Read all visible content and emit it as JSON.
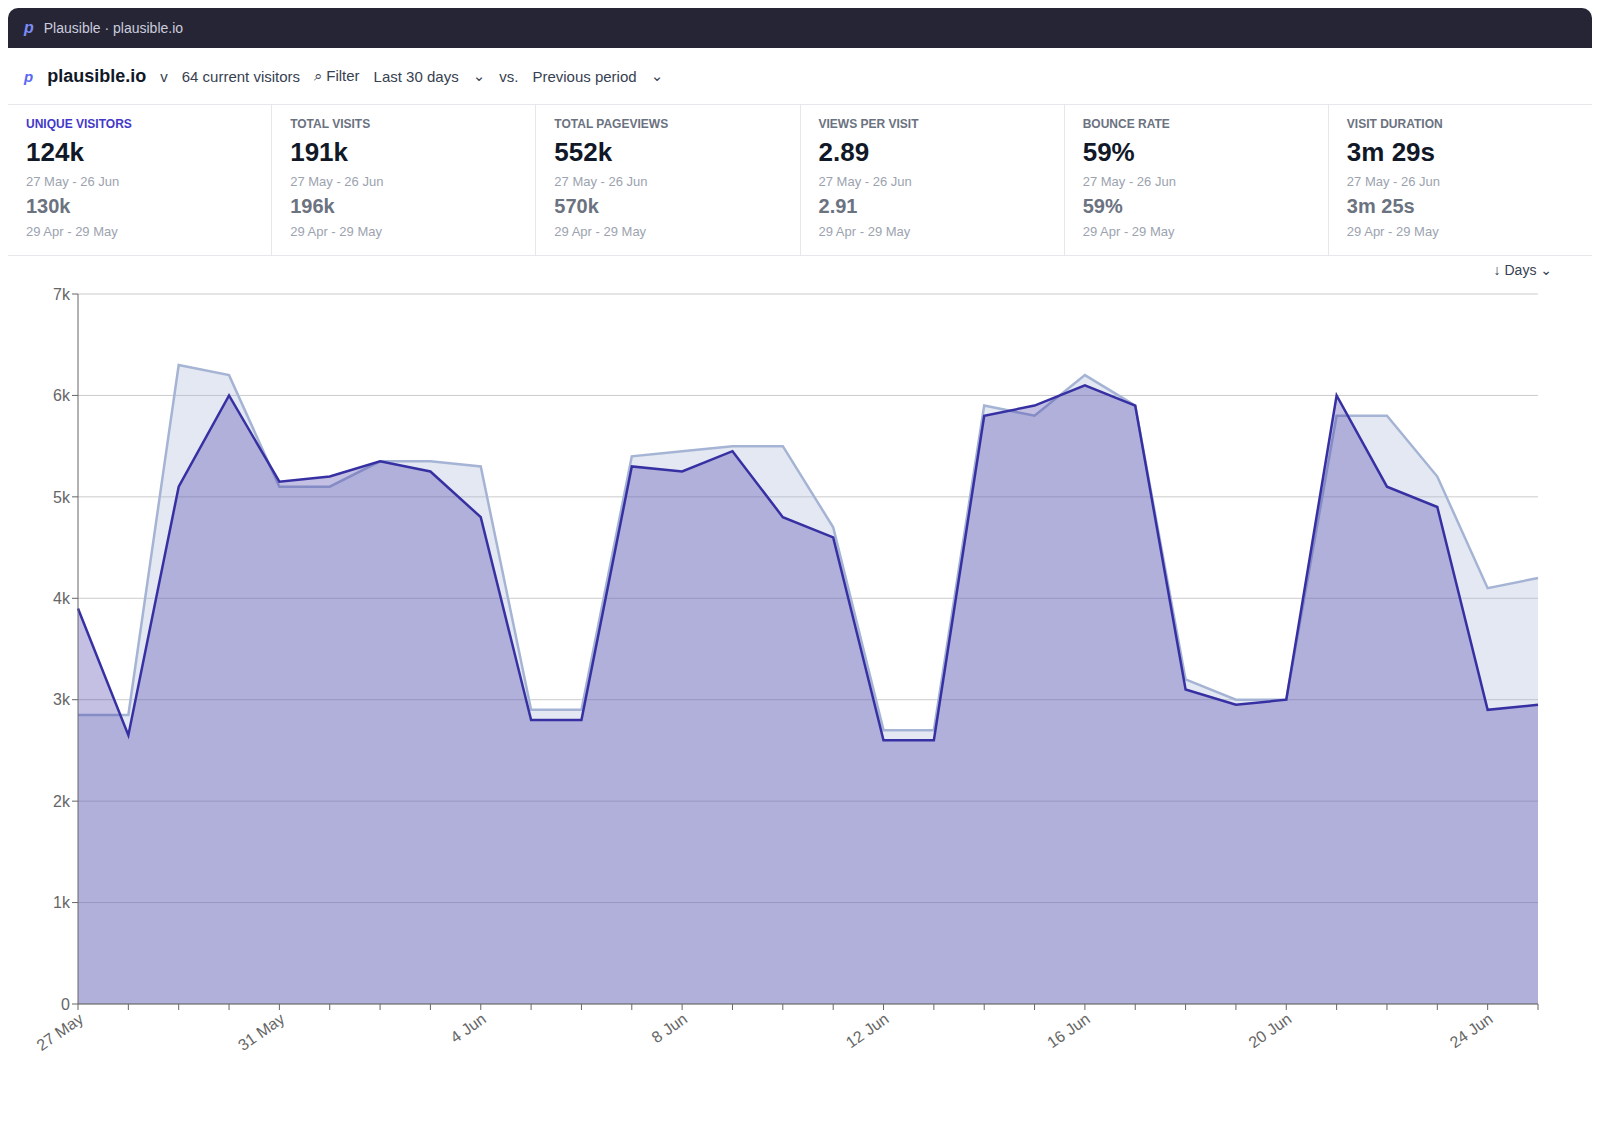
{
  "chart_data": {
    "type": "area",
    "annotations": [
      [
        "p",
        "Plausible · plausible.io"
      ],
      [
        "p",
        "plausible.io",
        "v",
        "64 current visitors",
        "⌕  Filter",
        "Last 30 days",
        "⌄",
        "vs.",
        "Previous period",
        "⌄"
      ],
      [
        "UNIQUE VISITORS",
        "124k",
        "27 May - 26 Jun",
        "130k",
        "29 Apr - 29 May"
      ],
      [
        "TOTAL VISITS",
        "191k",
        "27 May - 26 Jun",
        "196k",
        "29 Apr - 29 May"
      ],
      [
        "TOTAL PAGEVIEWS",
        "552k",
        "27 May - 26 Jun",
        "570k",
        "29 Apr - 29 May"
      ],
      [
        "VIEWS PER VISIT",
        "2.89",
        "27 May - 26 Jun",
        "2.91",
        "29 Apr - 29 May"
      ],
      [
        "BOUNCE RATE",
        "59%",
        "27 May - 26 Jun",
        "59%",
        "29 Apr - 29 May"
      ],
      [
        "VISIT DURATION",
        "3m 29s",
        "27 May - 26 Jun",
        "3m 25s",
        "29 Apr - 29 May"
      ],
      [
        "↓  Days  ⌄"
      ]
    ],
    "categories": [
      "27 May",
      null,
      null,
      null,
      "31 May",
      null,
      null,
      null,
      "4 Jun",
      null,
      null,
      null,
      "8 Jun",
      null,
      null,
      null,
      "12 Jun",
      null,
      null,
      null,
      "16 Jun",
      null,
      null,
      null,
      "20 Jun",
      null,
      null,
      null,
      "24 Jun",
      null
    ],
    "series": [
      {
        "color": "#a5b4d4",
        "values": [
          2850,
          2850,
          6300,
          6200,
          5100,
          5100,
          5350,
          5350,
          5300,
          2900,
          2900,
          5400,
          5450,
          5500,
          5500,
          4700,
          2700,
          2700,
          5900,
          5800,
          6200,
          5900,
          3200,
          3000,
          3000,
          5800,
          5800,
          5200,
          4100,
          4200
        ]
      },
      {
        "color": "#3730a3",
        "values": [
          3900,
          2650,
          5100,
          6000,
          5150,
          5200,
          5350,
          5250,
          4800,
          2800,
          2800,
          5300,
          5250,
          5450,
          4800,
          4600,
          2600,
          2600,
          5800,
          5900,
          6100,
          5900,
          3100,
          2950,
          3000,
          6000,
          5100,
          4900,
          2900,
          2950
        ]
      }
    ],
    "ylim": [
      0,
      7000
    ],
    "yticks": [
      0,
      {
        "value": 1000,
        "label": "1k"
      },
      {
        "value": 2000,
        "label": "2k"
      },
      {
        "value": 3000,
        "label": "3k"
      },
      {
        "value": 4000,
        "label": "4k"
      },
      {
        "value": 5000,
        "label": "5k"
      },
      {
        "value": 6000,
        "label": "6k"
      },
      {
        "value": 7000,
        "label": "7k"
      }
    ],
    "grid": true
  }
}
